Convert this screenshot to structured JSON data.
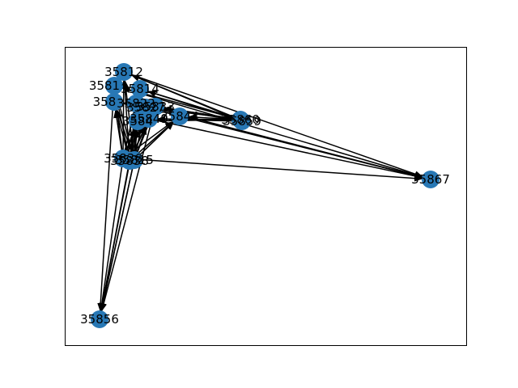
{
  "chart_data": {
    "type": "network",
    "title": "",
    "node_color": "#2878b5",
    "edge_color": "#000000",
    "frame": true,
    "nodes": [
      {
        "id": "n_35812",
        "label": "35812"
      },
      {
        "id": "n_3581x",
        "label": "3581"
      },
      {
        "id": "n_35814",
        "label": "35814"
      },
      {
        "id": "n_358_left",
        "label": "358"
      },
      {
        "id": "n_cluster_a",
        "label": "35822"
      },
      {
        "id": "n_cluster_b",
        "label": "35827"
      },
      {
        "id": "n_cluster_c",
        "label": "35833"
      },
      {
        "id": "n_3584x",
        "label": "3584"
      },
      {
        "id": "n_35844",
        "label": "35844"
      },
      {
        "id": "n_35849",
        "label": "35849"
      },
      {
        "id": "n_35860",
        "label": "35860"
      },
      {
        "id": "n_35859",
        "label": "35859"
      },
      {
        "id": "n_hub_1",
        "label": "35836"
      },
      {
        "id": "n_hub_2",
        "label": "35838"
      },
      {
        "id": "n_hub_3",
        "label": "35815"
      },
      {
        "id": "n_35867",
        "label": "35867"
      },
      {
        "id": "n_35856",
        "label": "35856"
      }
    ]
  }
}
